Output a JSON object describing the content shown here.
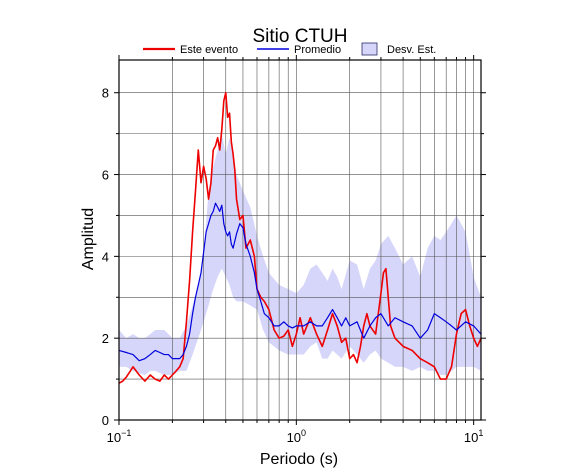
{
  "chart_data": {
    "type": "line",
    "title": "Sitio CTUH",
    "xlabel": "Periodo (s)",
    "ylabel": "Amplitud",
    "x_scale": "log",
    "xlim": [
      0.1,
      11
    ],
    "ylim": [
      0,
      8.8
    ],
    "x_ticks": [
      {
        "value": 0.1,
        "base": "10",
        "exp": "−1"
      },
      {
        "value": 1,
        "base": "10",
        "exp": "0"
      },
      {
        "value": 10,
        "base": "10",
        "exp": "1"
      }
    ],
    "y_ticks": [
      0,
      2,
      4,
      6,
      8
    ],
    "grid": true,
    "legend_position": "top",
    "legend": {
      "este": "Este evento",
      "promedio": "Promedio",
      "desv": "Desv. Est."
    },
    "colors": {
      "este": "#ee0000",
      "promedio": "#0000dd",
      "band_fill": "#d6d6fa",
      "band_stroke": "#2a2a6a"
    },
    "series": [
      {
        "name": "Este evento",
        "x": [
          0.1,
          0.105,
          0.11,
          0.12,
          0.13,
          0.14,
          0.15,
          0.16,
          0.17,
          0.18,
          0.19,
          0.2,
          0.21,
          0.22,
          0.23,
          0.24,
          0.25,
          0.26,
          0.27,
          0.28,
          0.29,
          0.3,
          0.31,
          0.32,
          0.33,
          0.34,
          0.35,
          0.36,
          0.37,
          0.38,
          0.39,
          0.4,
          0.41,
          0.42,
          0.43,
          0.44,
          0.45,
          0.46,
          0.48,
          0.5,
          0.52,
          0.55,
          0.58,
          0.6,
          0.63,
          0.66,
          0.7,
          0.75,
          0.8,
          0.85,
          0.9,
          0.95,
          1.0,
          1.05,
          1.1,
          1.2,
          1.3,
          1.4,
          1.5,
          1.6,
          1.7,
          1.8,
          1.9,
          2.0,
          2.1,
          2.2,
          2.3,
          2.4,
          2.5,
          2.6,
          2.8,
          3.0,
          3.1,
          3.2,
          3.4,
          3.6,
          3.8,
          4.0,
          4.5,
          5.0,
          5.5,
          6.0,
          6.5,
          7.0,
          7.5,
          8.0,
          8.5,
          9.0,
          9.5,
          10.0,
          10.5,
          11.0
        ],
        "values": [
          0.9,
          0.95,
          1.05,
          1.3,
          1.1,
          0.95,
          1.1,
          1.0,
          0.95,
          1.1,
          1.0,
          1.1,
          1.2,
          1.3,
          1.5,
          2.4,
          3.4,
          4.6,
          5.6,
          6.6,
          5.8,
          6.2,
          5.9,
          5.4,
          5.8,
          6.6,
          6.7,
          6.9,
          6.6,
          7.1,
          7.8,
          8.0,
          7.4,
          7.5,
          6.8,
          6.5,
          6.1,
          5.4,
          4.9,
          5.0,
          4.2,
          4.4,
          4.0,
          3.2,
          3.0,
          2.9,
          2.7,
          2.2,
          2.0,
          2.05,
          2.2,
          1.8,
          2.1,
          2.5,
          2.1,
          2.5,
          2.1,
          1.8,
          2.2,
          2.6,
          2.3,
          1.9,
          2.0,
          1.5,
          1.6,
          1.4,
          1.8,
          2.3,
          2.6,
          2.3,
          2.1,
          3.1,
          3.6,
          3.7,
          2.3,
          2.0,
          1.9,
          1.8,
          1.7,
          1.5,
          1.4,
          1.3,
          1.0,
          1.0,
          1.3,
          2.1,
          2.6,
          2.7,
          2.3,
          2.0,
          1.8,
          2.0
        ]
      },
      {
        "name": "Promedio",
        "x": [
          0.1,
          0.11,
          0.12,
          0.13,
          0.14,
          0.15,
          0.16,
          0.17,
          0.18,
          0.19,
          0.2,
          0.21,
          0.22,
          0.23,
          0.24,
          0.25,
          0.26,
          0.27,
          0.28,
          0.29,
          0.3,
          0.31,
          0.32,
          0.33,
          0.34,
          0.35,
          0.36,
          0.37,
          0.38,
          0.39,
          0.4,
          0.41,
          0.42,
          0.43,
          0.44,
          0.46,
          0.48,
          0.5,
          0.52,
          0.55,
          0.58,
          0.6,
          0.63,
          0.66,
          0.7,
          0.75,
          0.8,
          0.85,
          0.9,
          0.95,
          1.0,
          1.1,
          1.2,
          1.3,
          1.4,
          1.5,
          1.6,
          1.7,
          1.8,
          1.9,
          2.0,
          2.2,
          2.4,
          2.6,
          2.8,
          3.0,
          3.3,
          3.6,
          4.0,
          4.5,
          5.0,
          5.5,
          6.0,
          6.5,
          7.0,
          7.5,
          8.0,
          9.0,
          10.0,
          11.0
        ],
        "values": [
          1.7,
          1.65,
          1.6,
          1.45,
          1.5,
          1.6,
          1.7,
          1.65,
          1.6,
          1.6,
          1.5,
          1.5,
          1.5,
          1.6,
          1.8,
          2.1,
          2.6,
          3.0,
          3.3,
          3.6,
          4.1,
          4.6,
          4.8,
          5.0,
          5.1,
          5.3,
          5.2,
          5.1,
          5.25,
          4.8,
          4.6,
          4.5,
          4.6,
          4.3,
          4.2,
          4.55,
          4.8,
          4.7,
          4.3,
          4.0,
          3.6,
          3.2,
          2.9,
          2.6,
          2.5,
          2.3,
          2.3,
          2.4,
          2.3,
          2.25,
          2.3,
          2.3,
          2.4,
          2.3,
          2.3,
          2.5,
          2.7,
          2.5,
          2.3,
          2.5,
          2.3,
          2.4,
          2.0,
          2.3,
          2.5,
          2.6,
          2.3,
          2.5,
          2.4,
          2.3,
          2.0,
          2.2,
          2.6,
          2.5,
          2.4,
          2.3,
          2.2,
          2.4,
          2.3,
          2.1
        ]
      }
    ],
    "band": {
      "name": "Desv. Est.",
      "x": [
        0.1,
        0.11,
        0.12,
        0.13,
        0.14,
        0.15,
        0.16,
        0.18,
        0.2,
        0.22,
        0.24,
        0.26,
        0.28,
        0.3,
        0.32,
        0.34,
        0.36,
        0.38,
        0.4,
        0.42,
        0.44,
        0.46,
        0.5,
        0.55,
        0.6,
        0.65,
        0.7,
        0.8,
        0.9,
        1.0,
        1.1,
        1.2,
        1.3,
        1.4,
        1.5,
        1.6,
        1.7,
        1.8,
        2.0,
        2.2,
        2.4,
        2.6,
        2.8,
        3.0,
        3.3,
        3.6,
        4.0,
        4.5,
        5.0,
        5.5,
        6.0,
        6.5,
        7.0,
        7.5,
        8.0,
        9.0,
        10.0,
        11.0
      ],
      "upper": [
        2.2,
        2.0,
        2.1,
        2.0,
        2.0,
        2.1,
        2.2,
        2.2,
        2.0,
        2.0,
        2.3,
        2.8,
        3.3,
        4.0,
        5.6,
        6.2,
        6.6,
        7.0,
        6.5,
        6.9,
        6.5,
        6.0,
        5.6,
        5.2,
        4.5,
        4.0,
        3.6,
        3.3,
        3.2,
        3.1,
        3.3,
        3.7,
        3.8,
        3.6,
        3.4,
        3.7,
        3.5,
        3.2,
        3.9,
        3.8,
        3.2,
        3.7,
        3.9,
        4.3,
        4.5,
        4.2,
        3.8,
        4.0,
        3.5,
        4.2,
        4.5,
        4.4,
        4.6,
        4.8,
        5.0,
        4.6,
        3.5,
        3.0
      ],
      "lower": [
        1.3,
        1.3,
        1.2,
        1.15,
        1.1,
        1.2,
        1.2,
        1.1,
        1.1,
        1.2,
        1.2,
        1.6,
        2.0,
        2.4,
        2.8,
        3.2,
        3.5,
        3.7,
        3.5,
        3.3,
        3.0,
        2.9,
        2.9,
        2.8,
        2.7,
        2.2,
        1.9,
        1.7,
        1.6,
        1.6,
        1.6,
        1.8,
        1.9,
        1.5,
        1.5,
        1.7,
        1.6,
        1.5,
        1.8,
        1.6,
        1.4,
        1.6,
        1.7,
        1.5,
        1.4,
        1.3,
        1.3,
        1.2,
        1.3,
        1.2,
        1.2,
        1.1,
        1.1,
        1.2,
        1.3,
        1.3,
        1.3,
        1.2
      ]
    }
  }
}
